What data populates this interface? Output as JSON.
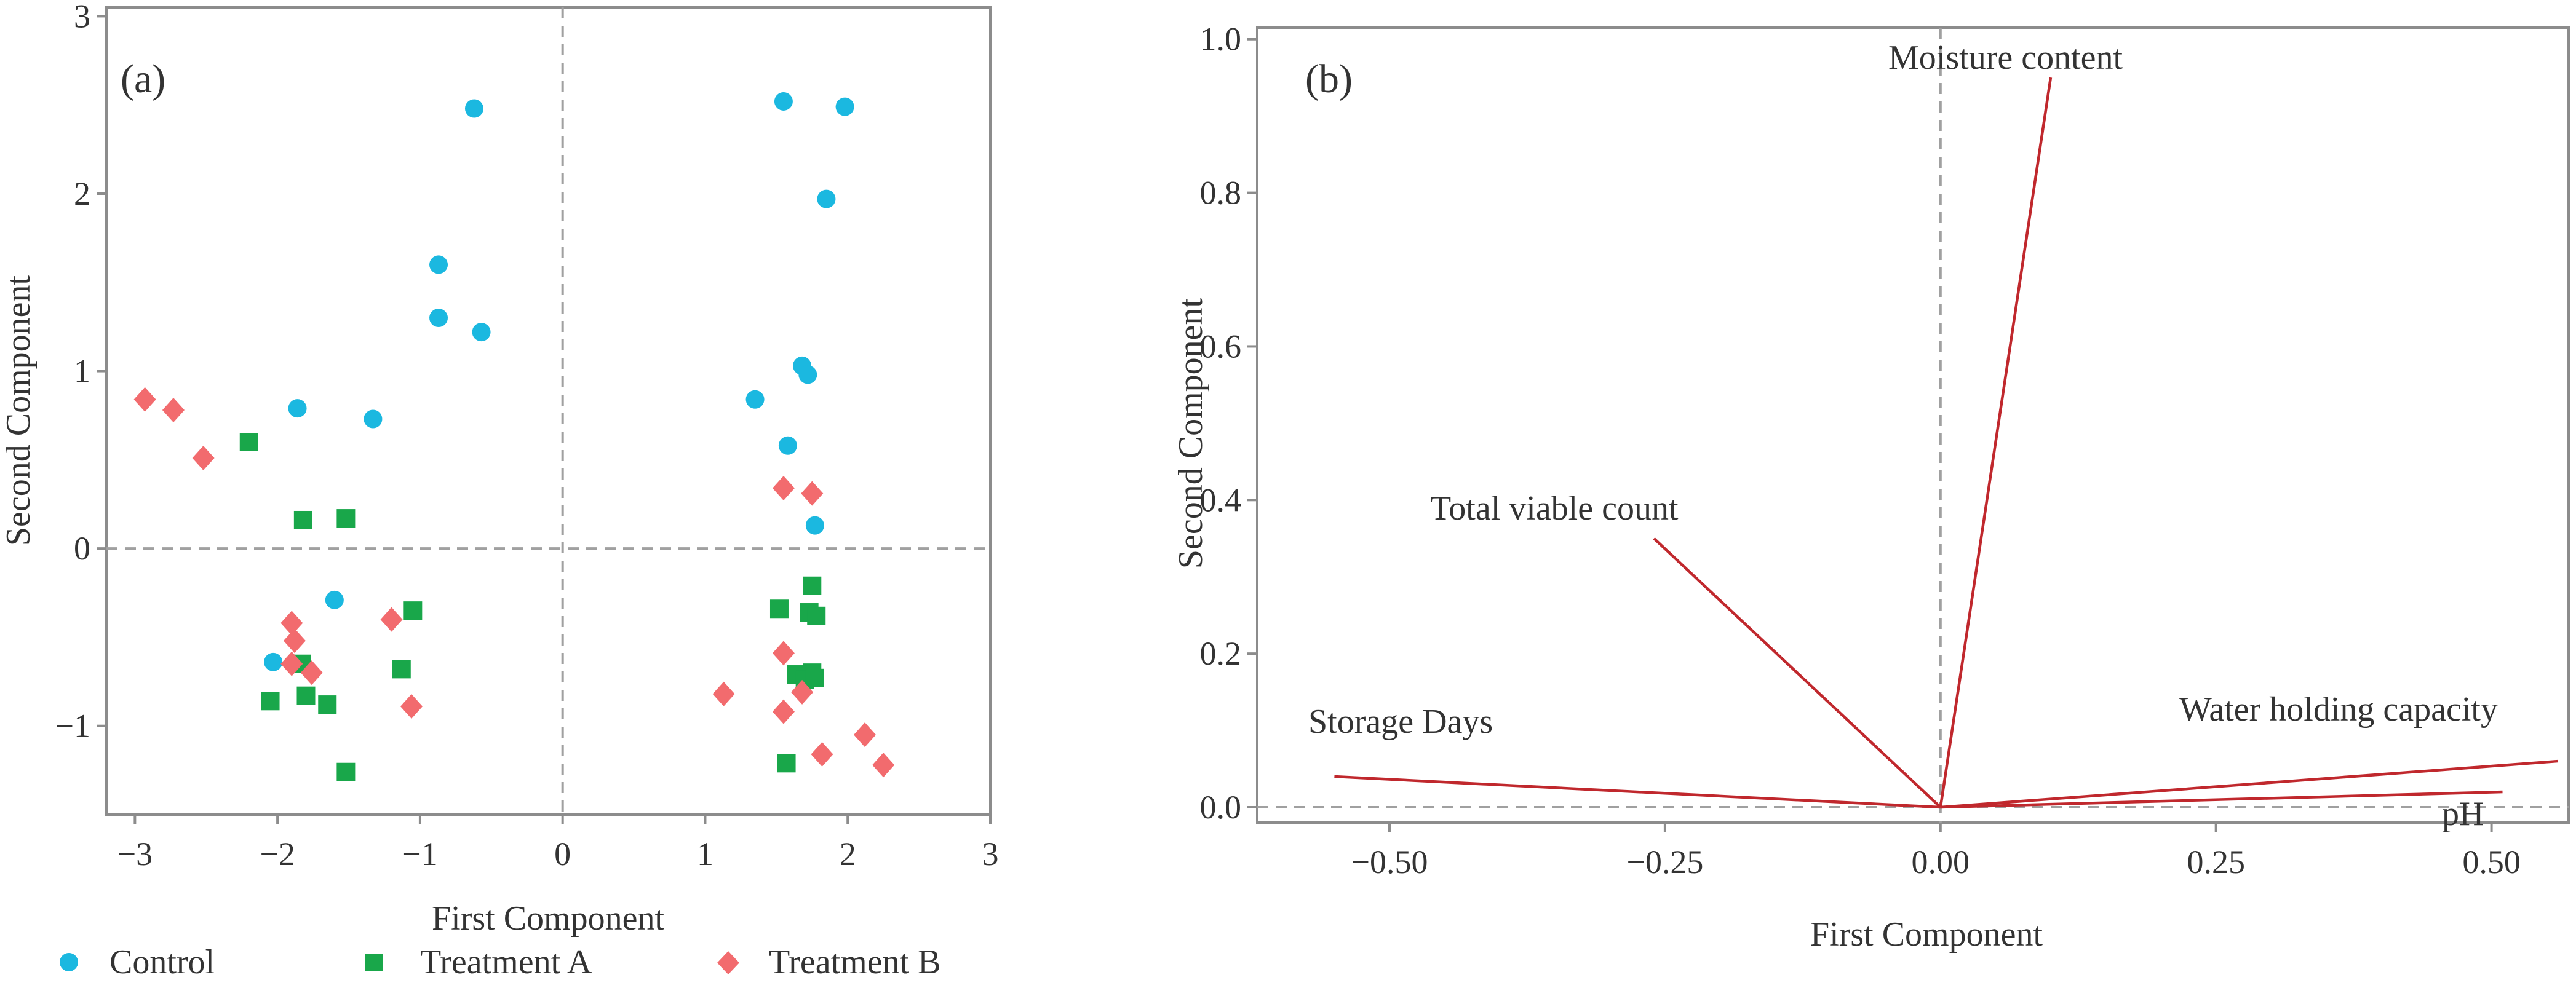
{
  "chart_data": [
    {
      "type": "scatter",
      "panel_label": "(a)",
      "xlabel": "First Component",
      "ylabel": "Second Component",
      "xlim": [
        -3.2,
        3.0
      ],
      "ylim": [
        -1.5,
        3.05
      ],
      "xticks": [
        -3,
        -2,
        -1,
        0,
        1,
        2,
        3
      ],
      "yticks": [
        -1,
        0,
        1,
        2,
        3
      ],
      "tick_labels_x": [
        "−3",
        "−2",
        "−1",
        "0",
        "1",
        "2",
        "3"
      ],
      "tick_labels_y": [
        "−1",
        "0",
        "1",
        "2",
        "3"
      ],
      "reference_lines": {
        "x": 0,
        "y": 0
      },
      "legend_position": "bottom",
      "colors": {
        "Control": "#1BB8E0",
        "Treatment A": "#19A74A",
        "Treatment B": "#F26B6E"
      },
      "series": [
        {
          "name": "Control",
          "marker": "circle",
          "points": [
            [
              -0.62,
              2.48
            ],
            [
              -0.87,
              1.6
            ],
            [
              -0.87,
              1.3
            ],
            [
              -0.57,
              1.22
            ],
            [
              -1.86,
              0.79
            ],
            [
              -1.33,
              0.73
            ],
            [
              -1.6,
              -0.29
            ],
            [
              -2.03,
              -0.64
            ],
            [
              1.55,
              2.52
            ],
            [
              1.98,
              2.49
            ],
            [
              1.85,
              1.97
            ],
            [
              1.68,
              1.03
            ],
            [
              1.72,
              0.98
            ],
            [
              1.35,
              0.84
            ],
            [
              1.58,
              0.58
            ],
            [
              1.77,
              0.13
            ]
          ]
        },
        {
          "name": "Treatment A",
          "marker": "square",
          "points": [
            [
              -2.2,
              0.6
            ],
            [
              -1.82,
              0.16
            ],
            [
              -1.52,
              0.17
            ],
            [
              -1.05,
              -0.35
            ],
            [
              -1.13,
              -0.68
            ],
            [
              -1.83,
              -0.65
            ],
            [
              -2.05,
              -0.86
            ],
            [
              -1.8,
              -0.83
            ],
            [
              -1.65,
              -0.88
            ],
            [
              -1.52,
              -1.26
            ],
            [
              1.75,
              -0.21
            ],
            [
              1.52,
              -0.34
            ],
            [
              1.73,
              -0.36
            ],
            [
              1.78,
              -0.38
            ],
            [
              1.75,
              -0.7
            ],
            [
              1.64,
              -0.71
            ],
            [
              1.7,
              -0.74
            ],
            [
              1.77,
              -0.73
            ],
            [
              1.57,
              -1.21
            ]
          ]
        },
        {
          "name": "Treatment B",
          "marker": "diamond",
          "points": [
            [
              -2.93,
              0.84
            ],
            [
              -2.73,
              0.78
            ],
            [
              -2.52,
              0.51
            ],
            [
              -1.9,
              -0.42
            ],
            [
              -1.88,
              -0.52
            ],
            [
              -1.9,
              -0.65
            ],
            [
              -1.76,
              -0.7
            ],
            [
              -1.2,
              -0.4
            ],
            [
              -1.06,
              -0.89
            ],
            [
              1.55,
              0.34
            ],
            [
              1.75,
              0.31
            ],
            [
              1.55,
              -0.59
            ],
            [
              1.68,
              -0.81
            ],
            [
              1.13,
              -0.82
            ],
            [
              1.55,
              -0.92
            ],
            [
              2.12,
              -1.05
            ],
            [
              1.82,
              -1.16
            ],
            [
              2.25,
              -1.22
            ]
          ]
        }
      ]
    },
    {
      "type": "line",
      "subtype": "loading_plot",
      "panel_label": "(b)",
      "xlabel": "First Component",
      "ylabel": "Second Component",
      "xlim": [
        -0.62,
        0.57
      ],
      "ylim": [
        -0.02,
        1.015
      ],
      "xticks": [
        -0.5,
        -0.25,
        0,
        0.25,
        0.5
      ],
      "yticks": [
        0,
        0.2,
        0.4,
        0.6,
        0.8,
        1.0
      ],
      "tick_labels_x": [
        "−0.50",
        "−0.25",
        "0.00",
        "0.25",
        "0.50"
      ],
      "tick_labels_y": [
        "0.0",
        "0.2",
        "0.4",
        "0.6",
        "0.8",
        "1.0"
      ],
      "reference_lines": {
        "x": 0,
        "y": 0
      },
      "line_color": "#C0282D",
      "vectors": [
        {
          "name": "Moisture content",
          "x": 0.1,
          "y": 0.95
        },
        {
          "name": "Total viable count",
          "x": -0.26,
          "y": 0.35
        },
        {
          "name": "Storage Days",
          "x": -0.55,
          "y": 0.04
        },
        {
          "name": "Water holding capacity",
          "x": 0.56,
          "y": 0.06
        },
        {
          "name": "pH",
          "x": 0.51,
          "y": 0.02
        }
      ]
    }
  ]
}
